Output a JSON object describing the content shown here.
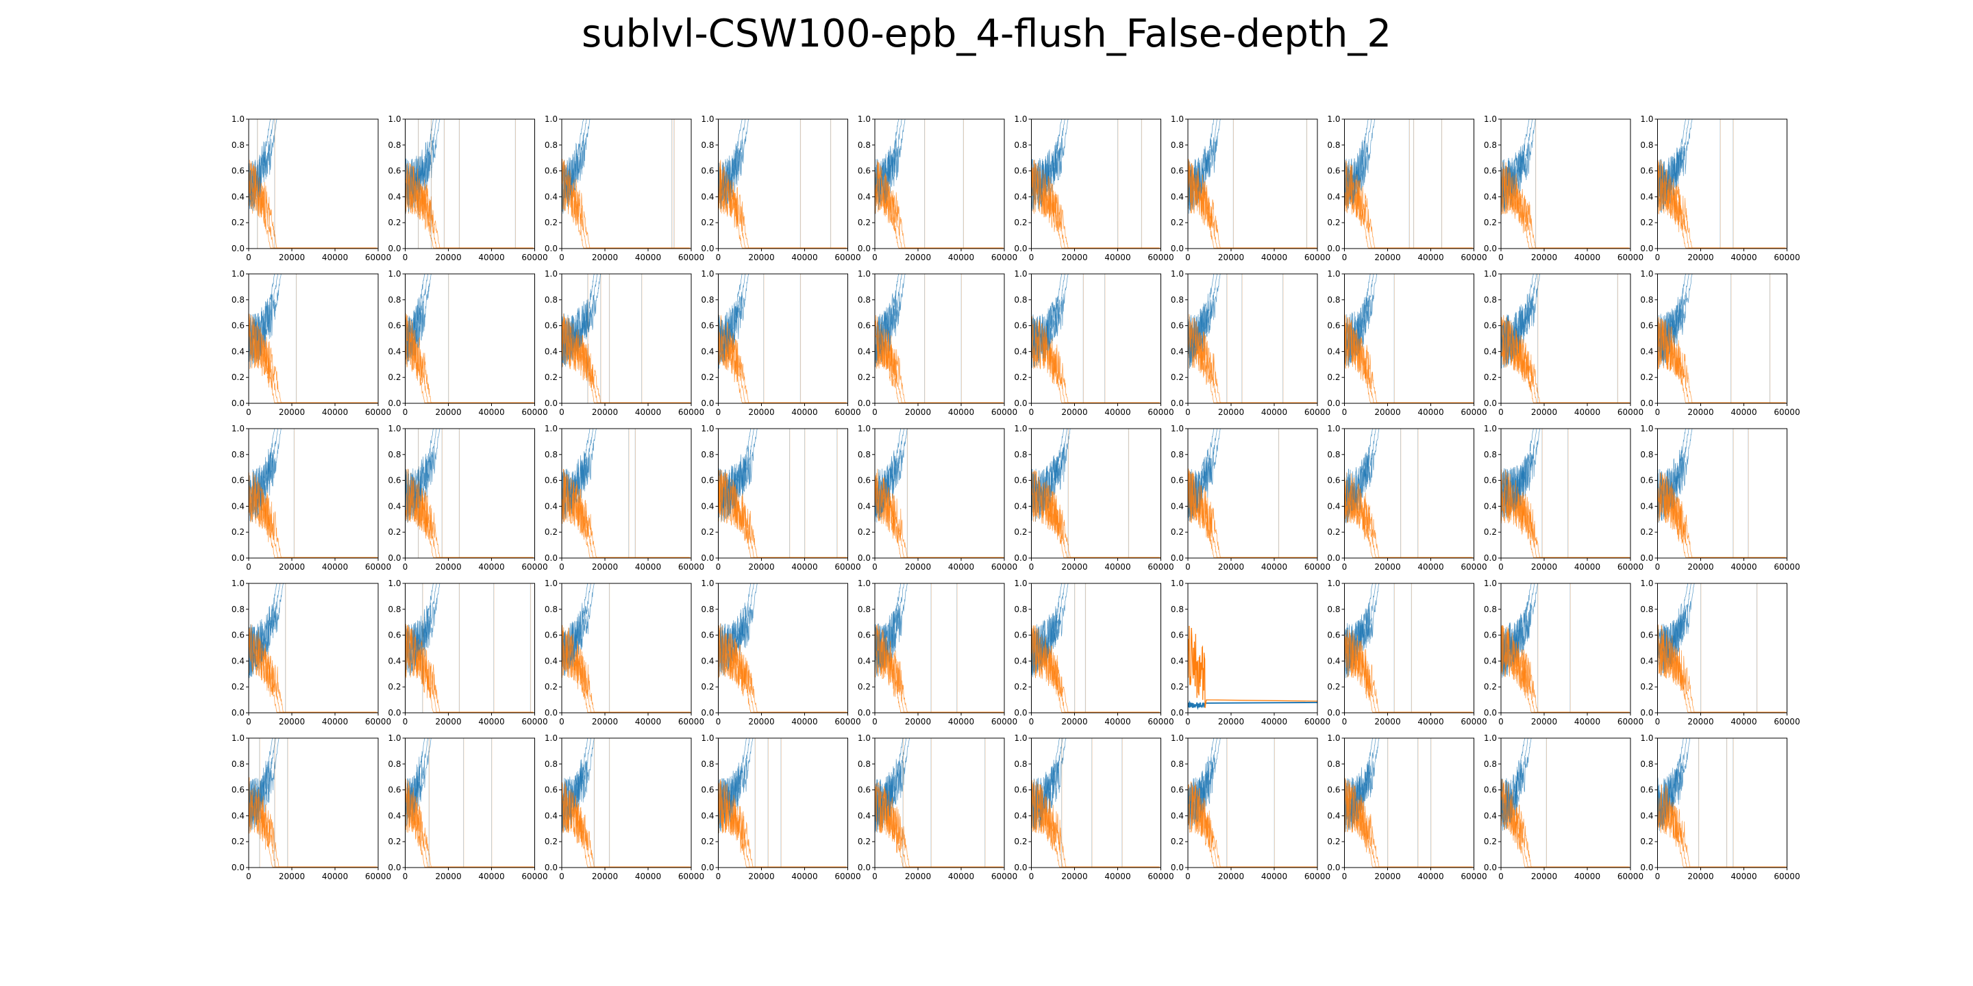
{
  "figure": {
    "title": "sublvl-CSW100-epb_4-flush_False-depth_2",
    "rows": 5,
    "cols": 10
  },
  "colors": {
    "series_blue": "#1f77b4",
    "series_orange": "#ff7f0e",
    "axis": "#000000"
  },
  "chart_data": {
    "type": "line",
    "subplot_count": 50,
    "layout": "5x10 grid",
    "xlim": [
      0,
      60000
    ],
    "ylim": [
      0.0,
      1.0
    ],
    "xticks": [
      0,
      20000,
      40000,
      60000
    ],
    "yticks": [
      0.0,
      0.2,
      0.4,
      0.6,
      0.8,
      1.0
    ],
    "xtick_labels": [
      "0",
      "20000",
      "40000",
      "60000"
    ],
    "ytick_labels": [
      "0.0",
      "0.2",
      "0.4",
      "0.6",
      "0.8",
      "1.0"
    ],
    "grid": false,
    "legend": "none",
    "series_colors": [
      "#1f77b4",
      "#ff7f0e"
    ],
    "subplots": [
      {
        "converge_x": 9000,
        "spikes": [
          4000,
          12000
        ]
      },
      {
        "converge_x": 12000,
        "spikes": [
          6000,
          12000,
          18000,
          25000,
          51000
        ]
      },
      {
        "converge_x": 9000,
        "spikes": [
          51000,
          52000
        ]
      },
      {
        "converge_x": 10000,
        "spikes": [
          38000,
          52000
        ]
      },
      {
        "converge_x": 10000,
        "spikes": [
          23000,
          41000
        ]
      },
      {
        "converge_x": 13000,
        "spikes": [
          40000,
          51000
        ]
      },
      {
        "converge_x": 11000,
        "spikes": [
          21000,
          55000
        ]
      },
      {
        "converge_x": 10000,
        "spikes": [
          30000,
          32000,
          45000
        ]
      },
      {
        "converge_x": 12000,
        "spikes": [
          16000
        ]
      },
      {
        "converge_x": 12000,
        "spikes": [
          29000,
          35000
        ]
      },
      {
        "converge_x": 11000,
        "spikes": [
          22000
        ]
      },
      {
        "converge_x": 8000,
        "spikes": [
          20000
        ]
      },
      {
        "converge_x": 14000,
        "spikes": [
          12000,
          18000,
          22000,
          37000
        ]
      },
      {
        "converge_x": 10000,
        "spikes": [
          21000,
          38000
        ]
      },
      {
        "converge_x": 10000,
        "spikes": [
          23000,
          40000
        ]
      },
      {
        "converge_x": 13000,
        "spikes": [
          24000,
          34000
        ]
      },
      {
        "converge_x": 11000,
        "spikes": [
          18000,
          25000,
          44000
        ]
      },
      {
        "converge_x": 11000,
        "spikes": [
          23000
        ]
      },
      {
        "converge_x": 14000,
        "spikes": [
          17000,
          54000
        ]
      },
      {
        "converge_x": 12000,
        "spikes": [
          34000,
          52000
        ]
      },
      {
        "converge_x": 11000,
        "spikes": [
          21000
        ]
      },
      {
        "converge_x": 12000,
        "spikes": [
          6000,
          17000,
          25000
        ]
      },
      {
        "converge_x": 12000,
        "spikes": [
          31000,
          34000
        ]
      },
      {
        "converge_x": 14000,
        "spikes": [
          33000,
          40000,
          55000
        ]
      },
      {
        "converge_x": 11000,
        "spikes": [
          15000
        ]
      },
      {
        "converge_x": 14000,
        "spikes": [
          17000,
          45000
        ]
      },
      {
        "converge_x": 11000,
        "spikes": [
          42000
        ]
      },
      {
        "converge_x": 12000,
        "spikes": [
          26000,
          34000
        ]
      },
      {
        "converge_x": 14000,
        "spikes": [
          19000,
          31000
        ]
      },
      {
        "converge_x": 12000,
        "spikes": [
          35000,
          42000
        ]
      },
      {
        "converge_x": 12000,
        "spikes": [
          17000
        ]
      },
      {
        "converge_x": 12000,
        "spikes": [
          8000,
          25000,
          41000,
          58000
        ]
      },
      {
        "converge_x": 11000,
        "spikes": [
          22000
        ]
      },
      {
        "converge_x": 14000,
        "spikes": []
      },
      {
        "converge_x": 11000,
        "spikes": [
          26000,
          38000
        ]
      },
      {
        "converge_x": 13000,
        "spikes": [
          20000,
          25000
        ]
      },
      {
        "converge_x": 0,
        "spikes": []
      },
      {
        "converge_x": 12000,
        "spikes": [
          23000,
          31000
        ]
      },
      {
        "converge_x": 13000,
        "spikes": [
          17000,
          32000
        ]
      },
      {
        "converge_x": 13000,
        "spikes": [
          20000,
          46000
        ]
      },
      {
        "converge_x": 10000,
        "spikes": [
          5000,
          12000,
          18000
        ]
      },
      {
        "converge_x": 8000,
        "spikes": [
          11000,
          27000,
          40000
        ]
      },
      {
        "converge_x": 11000,
        "spikes": [
          15000,
          22000
        ]
      },
      {
        "converge_x": 12000,
        "spikes": [
          17000,
          23000,
          29000
        ]
      },
      {
        "converge_x": 12000,
        "spikes": [
          13000,
          26000,
          51000
        ]
      },
      {
        "converge_x": 12000,
        "spikes": [
          14000,
          28000,
          42000
        ]
      },
      {
        "converge_x": 11000,
        "spikes": [
          18000,
          40000
        ]
      },
      {
        "converge_x": 12000,
        "spikes": [
          20000,
          34000,
          40000
        ]
      },
      {
        "converge_x": 10000,
        "spikes": [
          21000
        ]
      },
      {
        "converge_x": 11000,
        "spikes": [
          19000,
          32000,
          35000
        ]
      }
    ]
  }
}
